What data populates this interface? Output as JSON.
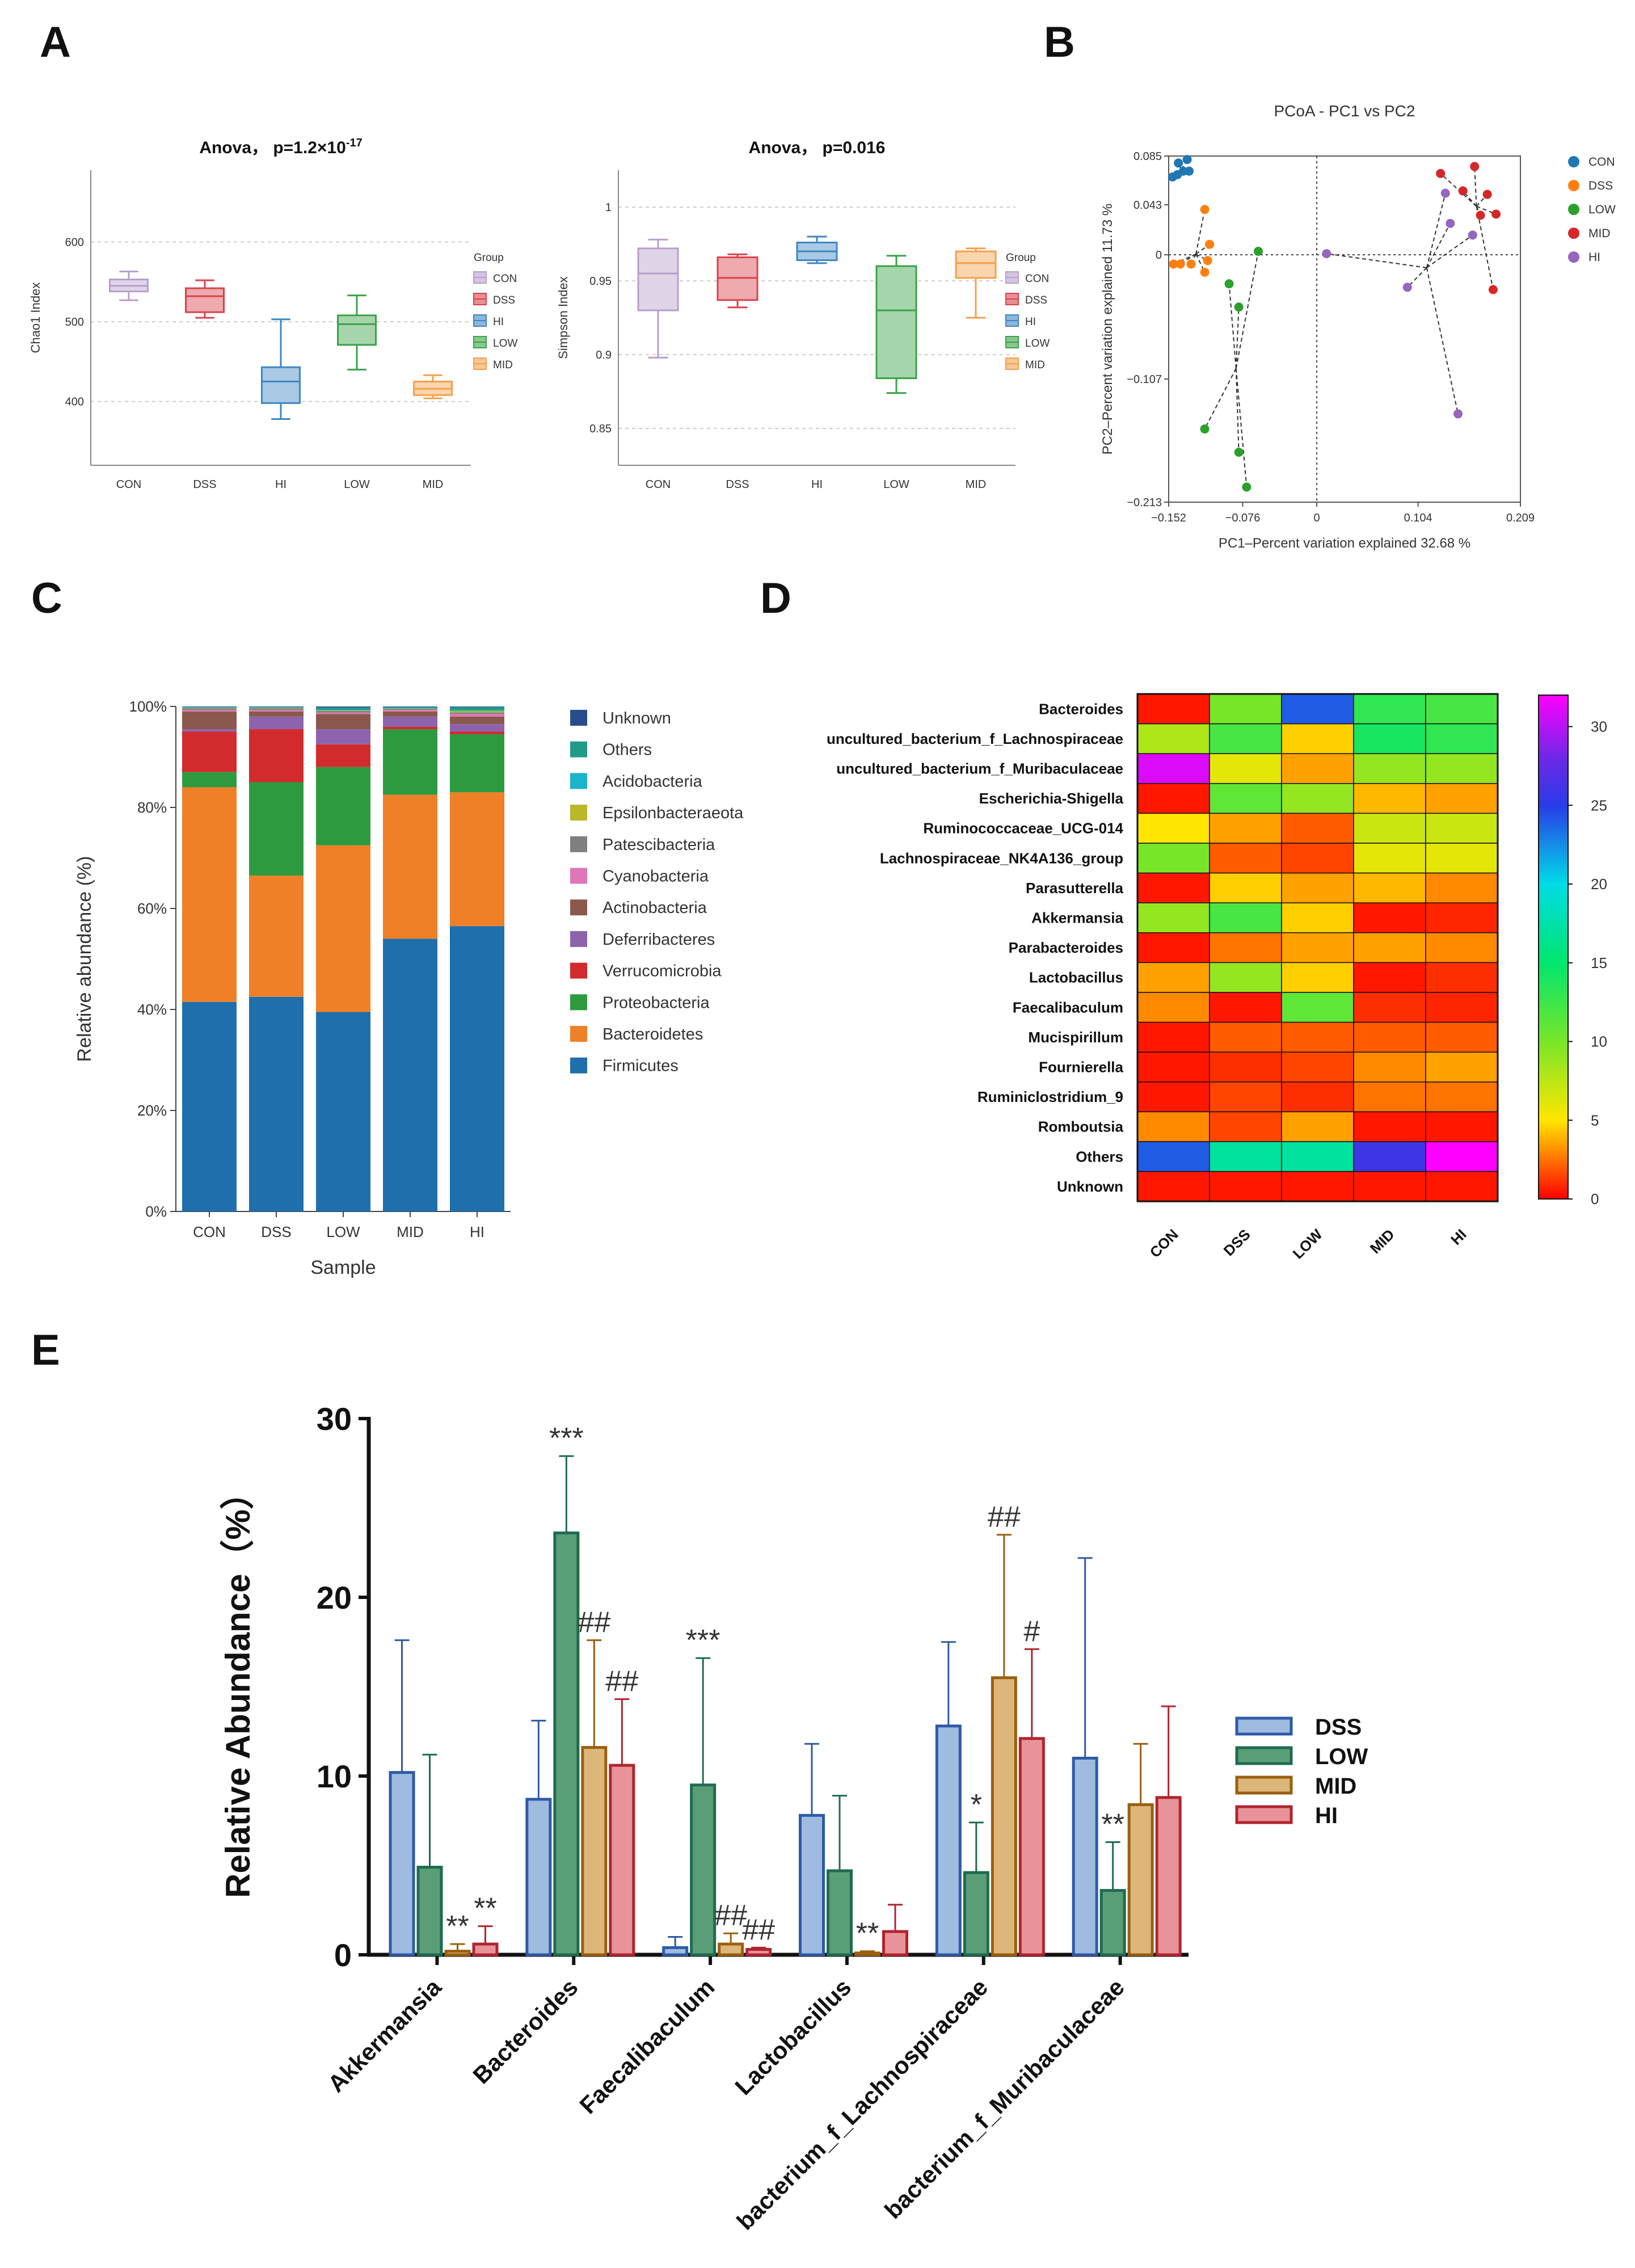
{
  "panels": {
    "A": "A",
    "B": "B",
    "C": "C",
    "D": "D",
    "E": "E"
  },
  "colors": {
    "CON": "#b79fcb",
    "DSS": "#d9424c",
    "HI": "#3f86c2",
    "LOW": "#3aa247",
    "MID": "#f4a14c",
    "pcoa_CON": "#1f77b4",
    "pcoa_DSS": "#ff7f0e",
    "pcoa_LOW": "#2ca02c",
    "pcoa_MID": "#d62728",
    "pcoa_HI": "#9467bd"
  },
  "chart_data": [
    {
      "id": "A1",
      "type": "box",
      "title_prefix": "Anova， p=1.2×10",
      "title_exp": "-17",
      "ylabel": "Chao1 Index",
      "ylim": [
        320,
        690
      ],
      "yticks": [
        400,
        500,
        600
      ],
      "legend_title": "Group",
      "legend": [
        "CON",
        "DSS",
        "HI",
        "LOW",
        "MID"
      ],
      "categories": [
        "CON",
        "DSS",
        "HI",
        "LOW",
        "MID"
      ],
      "boxes": [
        {
          "group": "CON",
          "min": 527,
          "q1": 538,
          "median": 545,
          "q3": 553,
          "max": 563
        },
        {
          "group": "DSS",
          "min": 505,
          "q1": 512,
          "median": 532,
          "q3": 542,
          "max": 552
        },
        {
          "group": "HI",
          "min": 378,
          "q1": 398,
          "median": 425,
          "q3": 443,
          "max": 503
        },
        {
          "group": "LOW",
          "min": 440,
          "q1": 471,
          "median": 497,
          "q3": 508,
          "max": 533
        },
        {
          "group": "MID",
          "min": 404,
          "q1": 408,
          "median": 416,
          "q3": 425,
          "max": 433
        }
      ]
    },
    {
      "id": "A2",
      "type": "box",
      "title": "Anova， p=0.016",
      "ylabel": "Simpson Index",
      "ylim": [
        0.825,
        1.025
      ],
      "yticks": [
        0.85,
        0.9,
        0.95,
        1
      ],
      "ytick_labels": [
        "0.85",
        "0.9",
        "0.95",
        "1"
      ],
      "legend_title": "Group",
      "legend": [
        "CON",
        "DSS",
        "HI",
        "LOW",
        "MID"
      ],
      "categories": [
        "CON",
        "DSS",
        "HI",
        "LOW",
        "MID"
      ],
      "boxes": [
        {
          "group": "CON",
          "min": 0.898,
          "q1": 0.93,
          "median": 0.955,
          "q3": 0.972,
          "max": 0.978
        },
        {
          "group": "DSS",
          "min": 0.932,
          "q1": 0.937,
          "median": 0.952,
          "q3": 0.966,
          "max": 0.968
        },
        {
          "group": "HI",
          "min": 0.962,
          "q1": 0.964,
          "median": 0.97,
          "q3": 0.976,
          "max": 0.98
        },
        {
          "group": "LOW",
          "min": 0.874,
          "q1": 0.884,
          "median": 0.93,
          "q3": 0.96,
          "max": 0.967
        },
        {
          "group": "MID",
          "min": 0.925,
          "q1": 0.952,
          "median": 0.962,
          "q3": 0.97,
          "max": 0.972
        }
      ]
    },
    {
      "id": "B",
      "type": "scatter",
      "title": "PCoA - PC1 vs PC2",
      "xlabel": "PC1–Percent variation explained 32.68 %",
      "ylabel": "PC2–Percent variation explained 11.73 %",
      "xlim": [
        -0.152,
        0.209
      ],
      "ylim": [
        -0.213,
        0.085
      ],
      "xticks": [
        -0.152,
        -0.076,
        0,
        0.104,
        0.209
      ],
      "xtick_labels": [
        "−0.152",
        "−0.076",
        "0",
        "0.104",
        "0.209"
      ],
      "yticks": [
        0.085,
        0.043,
        0,
        -0.107,
        -0.213
      ],
      "ytick_labels": [
        "0.085",
        "0.043",
        "0",
        "−0.107",
        "−0.213"
      ],
      "legend": [
        "CON",
        "DSS",
        "LOW",
        "MID",
        "HI"
      ],
      "series": [
        {
          "name": "CON",
          "points": [
            [
              -0.148,
              0.067
            ],
            [
              -0.143,
              0.069
            ],
            [
              -0.137,
              0.072
            ],
            [
              -0.142,
              0.079
            ],
            [
              -0.133,
              0.082
            ],
            [
              -0.131,
              0.072
            ]
          ]
        },
        {
          "name": "DSS",
          "points": [
            [
              -0.147,
              -0.008
            ],
            [
              -0.14,
              -0.008
            ],
            [
              -0.129,
              -0.008
            ],
            [
              -0.115,
              -0.015
            ],
            [
              -0.11,
              0.009
            ],
            [
              -0.115,
              0.039
            ],
            [
              -0.112,
              -0.005
            ]
          ]
        },
        {
          "name": "LOW",
          "points": [
            [
              -0.115,
              -0.15
            ],
            [
              -0.09,
              -0.025
            ],
            [
              -0.08,
              -0.045
            ],
            [
              -0.08,
              -0.17
            ],
            [
              -0.072,
              -0.2
            ],
            [
              -0.06,
              0.003
            ]
          ]
        },
        {
          "name": "MID",
          "points": [
            [
              0.127,
              0.07
            ],
            [
              0.15,
              0.055
            ],
            [
              0.162,
              0.076
            ],
            [
              0.168,
              0.034
            ],
            [
              0.184,
              0.035
            ],
            [
              0.175,
              0.052
            ],
            [
              0.181,
              -0.03
            ]
          ]
        },
        {
          "name": "HI",
          "points": [
            [
              0.01,
              0.001
            ],
            [
              0.093,
              -0.028
            ],
            [
              0.132,
              0.053
            ],
            [
              0.137,
              0.027
            ],
            [
              0.16,
              0.017
            ],
            [
              0.145,
              -0.137
            ]
          ]
        }
      ]
    },
    {
      "id": "C",
      "type": "stacked_bar",
      "xlabel": "Sample",
      "ylabel": "Relative abundance (%)",
      "ylim": [
        0,
        100
      ],
      "yticks": [
        0,
        20,
        40,
        60,
        80,
        100
      ],
      "ytick_labels": [
        "0%",
        "20%",
        "40%",
        "60%",
        "80%",
        "100%"
      ],
      "categories": [
        "CON",
        "DSS",
        "LOW",
        "MID",
        "HI"
      ],
      "legend_order": [
        "Unknown",
        "Others",
        "Acidobacteria",
        "Epsilonbacteraeota",
        "Patescibacteria",
        "Cyanobacteria",
        "Actinobacteria",
        "Deferribacteres",
        "Verrucomicrobia",
        "Proteobacteria",
        "Bacteroidetes",
        "Firmicutes"
      ],
      "series": [
        {
          "name": "Firmicutes",
          "color": "#1f6fad",
          "values": [
            41.5,
            42.5,
            39.5,
            54.0,
            56.5
          ]
        },
        {
          "name": "Bacteroidetes",
          "color": "#f08028",
          "values": [
            42.5,
            24.0,
            33.0,
            28.5,
            26.5
          ]
        },
        {
          "name": "Proteobacteria",
          "color": "#2e9a40",
          "values": [
            3.0,
            18.5,
            15.5,
            13.0,
            11.5
          ]
        },
        {
          "name": "Verrucomicrobia",
          "color": "#d22b2e",
          "values": [
            8.0,
            10.5,
            4.5,
            0.5,
            0.5
          ]
        },
        {
          "name": "Deferribacteres",
          "color": "#8e63ae",
          "values": [
            0.5,
            2.5,
            3.0,
            2.0,
            1.5
          ]
        },
        {
          "name": "Actinobacteria",
          "color": "#8a584c",
          "values": [
            3.5,
            1.0,
            3.0,
            1.0,
            1.5
          ]
        },
        {
          "name": "Cyanobacteria",
          "color": "#de77b8",
          "values": [
            0.3,
            0.3,
            0.3,
            0.3,
            0.5
          ]
        },
        {
          "name": "Patescibacteria",
          "color": "#7f7f7f",
          "values": [
            0.3,
            0.3,
            0.3,
            0.2,
            0.3
          ]
        },
        {
          "name": "Epsilonbacteraeota",
          "color": "#b8b82a",
          "values": [
            0.1,
            0.1,
            0.1,
            0.1,
            0.3
          ]
        },
        {
          "name": "Acidobacteria",
          "color": "#1cb4c8",
          "values": [
            0.1,
            0.1,
            0.1,
            0.1,
            0.2
          ]
        },
        {
          "name": "Others",
          "color": "#229a88",
          "values": [
            0.1,
            0.1,
            0.5,
            0.2,
            0.6
          ]
        },
        {
          "name": "Unknown",
          "color": "#2b4c8c",
          "values": [
            0.1,
            0.1,
            0.2,
            0.1,
            0.1
          ]
        }
      ]
    },
    {
      "id": "D",
      "type": "heatmap",
      "columns": [
        "CON",
        "DSS",
        "LOW",
        "MID",
        "HI"
      ],
      "rows": [
        "Bacteroides",
        "uncultured_bacterium_f_Lachnospiraceae",
        "uncultured_bacterium_f_Muribaculaceae",
        "Escherichia-Shigella",
        "Ruminococcaceae_UCG-014",
        "Lachnospiraceae_NK4A136_group",
        "Parasutterella",
        "Akkermansia",
        "Parabacteroides",
        "Lactobacillus",
        "Faecalibaculum",
        "Mucispirillum",
        "Fournierella",
        "Ruminiclostridium_9",
        "Romboutsia",
        "Others",
        "Unknown"
      ],
      "values": [
        [
          0.5,
          10,
          24,
          13,
          12
        ],
        [
          8,
          12,
          4.5,
          14,
          13
        ],
        [
          31,
          6,
          3.5,
          9,
          9
        ],
        [
          0.5,
          11,
          9,
          4,
          3.5
        ],
        [
          5,
          3.5,
          2,
          7,
          7
        ],
        [
          10,
          2,
          1.5,
          6,
          6
        ],
        [
          0.5,
          4.5,
          3.5,
          4,
          3
        ],
        [
          9,
          12,
          4.5,
          0.5,
          0.8
        ],
        [
          0.5,
          2.5,
          3.5,
          3.5,
          3
        ],
        [
          3.5,
          9,
          4.5,
          0.5,
          1
        ],
        [
          3,
          0.5,
          11,
          1,
          0.8
        ],
        [
          0.5,
          2,
          2,
          2,
          2
        ],
        [
          0.5,
          1,
          1.5,
          3,
          3.5
        ],
        [
          0.5,
          1.5,
          1,
          2.5,
          2.5
        ],
        [
          3,
          1.5,
          3.5,
          0.5,
          0.5
        ],
        [
          24,
          17,
          17,
          26,
          33
        ],
        [
          0.5,
          0.5,
          0.5,
          0.5,
          0.5
        ]
      ],
      "colorbar": {
        "min": 0,
        "max": 32,
        "ticks": [
          0,
          5,
          10,
          15,
          20,
          25,
          30
        ],
        "tick_labels": [
          "0",
          "5",
          "10",
          "15",
          "20",
          "25",
          "30"
        ]
      }
    },
    {
      "id": "E",
      "type": "bar",
      "ylabel": "Relative Abundance（%）",
      "ylim": [
        0,
        30
      ],
      "yticks": [
        0,
        10,
        20,
        30
      ],
      "ytick_labels": [
        "0",
        "10",
        "20",
        "30"
      ],
      "categories": [
        "Akkermansia",
        "Bacteroides",
        "Faecalibaculum",
        "Lactobacillus",
        "bacterium_f_Lachnospiraceae",
        "bacterium_f_Muribaculaceae"
      ],
      "legend": [
        "DSS",
        "LOW",
        "MID",
        "HI"
      ],
      "series": [
        {
          "name": "DSS",
          "fill": "#9fbbe0",
          "edge": "#2e5aa6",
          "values": [
            10.2,
            8.7,
            0.4,
            7.8,
            12.8,
            11.0
          ],
          "errors": [
            7.4,
            4.4,
            0.6,
            4.0,
            4.7,
            11.2
          ]
        },
        {
          "name": "LOW",
          "fill": "#5a9e78",
          "edge": "#1f6b4f",
          "values": [
            4.9,
            23.6,
            9.5,
            4.7,
            4.6,
            3.6
          ],
          "errors": [
            6.3,
            4.3,
            7.1,
            4.2,
            2.8,
            2.7
          ]
        },
        {
          "name": "MID",
          "fill": "#ddb679",
          "edge": "#9a5f10",
          "values": [
            0.2,
            11.6,
            0.6,
            0.1,
            15.5,
            8.4
          ],
          "errors": [
            0.4,
            6.0,
            0.6,
            0.1,
            8.0,
            3.4
          ]
        },
        {
          "name": "HI",
          "fill": "#e8939a",
          "edge": "#b0242f",
          "values": [
            0.6,
            10.6,
            0.3,
            1.3,
            12.1,
            8.8
          ],
          "errors": [
            1.0,
            3.7,
            0.1,
            1.5,
            5.0,
            5.1
          ]
        }
      ],
      "annotations": [
        {
          "cat": 0,
          "series": 2,
          "text": "**"
        },
        {
          "cat": 0,
          "series": 3,
          "text": "**"
        },
        {
          "cat": 1,
          "series": 1,
          "text": "***"
        },
        {
          "cat": 1,
          "series": 2,
          "text": "##"
        },
        {
          "cat": 1,
          "series": 3,
          "text": "##"
        },
        {
          "cat": 2,
          "series": 1,
          "text": "***"
        },
        {
          "cat": 2,
          "series": 2,
          "text": "##"
        },
        {
          "cat": 2,
          "series": 3,
          "text": "##"
        },
        {
          "cat": 3,
          "series": 2,
          "text": "**"
        },
        {
          "cat": 4,
          "series": 1,
          "text": "*"
        },
        {
          "cat": 4,
          "series": 2,
          "text": "##"
        },
        {
          "cat": 4,
          "series": 3,
          "text": "#"
        },
        {
          "cat": 5,
          "series": 1,
          "text": "**"
        }
      ]
    }
  ]
}
